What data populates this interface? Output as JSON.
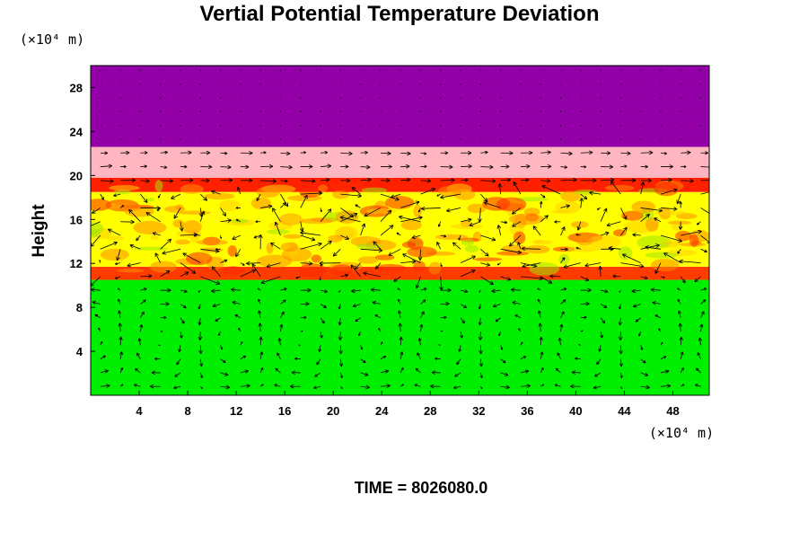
{
  "chart_data": {
    "type": "heatmap",
    "title": "Vertial Potential Temperature Deviation",
    "ylabel": "Height",
    "xlabel": "",
    "y_unit": "(×10⁴ m)",
    "x_unit": "(×10⁴ m)",
    "xlim": [
      0,
      51
    ],
    "ylim": [
      0,
      30
    ],
    "x_ticks": [
      "4",
      "8",
      "12",
      "16",
      "20",
      "24",
      "28",
      "32",
      "36",
      "40",
      "44",
      "48"
    ],
    "y_ticks": [
      "4",
      "8",
      "12",
      "16",
      "20",
      "24",
      "28"
    ],
    "time_label": "TIME = 8026080.0",
    "overlay": "velocity vectors",
    "layers": [
      {
        "from": 0,
        "to": 10.5,
        "color": "#00ee00"
      },
      {
        "from": 10.5,
        "to": 11.7,
        "color": "#ff3b00"
      },
      {
        "from": 11.7,
        "to": 18.5,
        "color": "#ffff00"
      },
      {
        "from": 18.5,
        "to": 19.8,
        "color": "#ff2000"
      },
      {
        "from": 19.8,
        "to": 22.6,
        "color": "#ffb6c1"
      },
      {
        "from": 22.6,
        "to": 30,
        "color": "#9400a8"
      }
    ],
    "grid": false
  }
}
